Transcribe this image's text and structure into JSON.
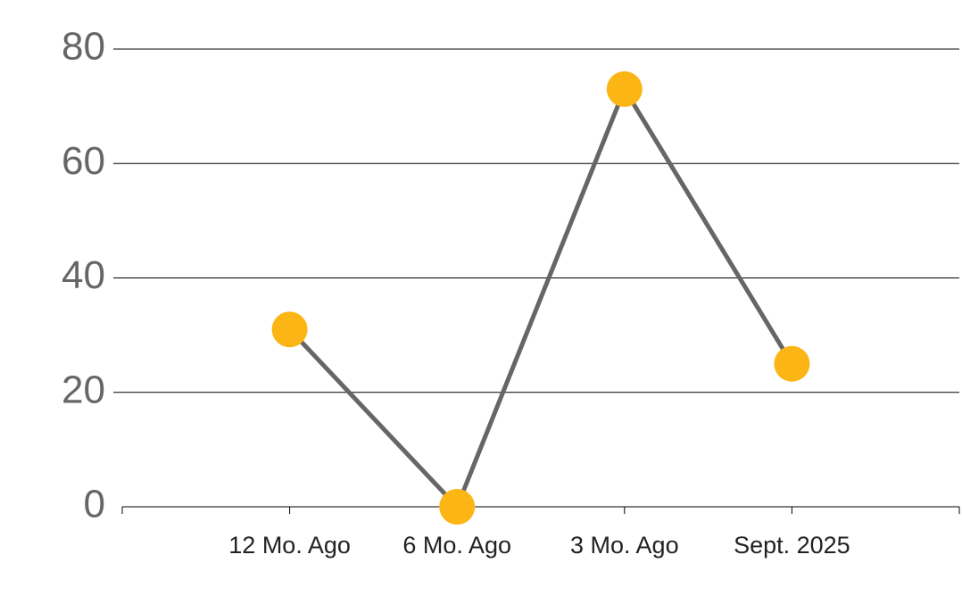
{
  "chart_data": {
    "type": "line",
    "categories": [
      "12 Mo. Ago",
      "6 Mo. Ago",
      "3 Mo. Ago",
      "Sept. 2025"
    ],
    "values": [
      31,
      0,
      73,
      25
    ],
    "line_color": "#666666",
    "marker_color": "#fbb615",
    "ylim": [
      0,
      80
    ],
    "yticks": [
      0,
      20,
      40,
      60,
      80
    ],
    "grid": true
  }
}
